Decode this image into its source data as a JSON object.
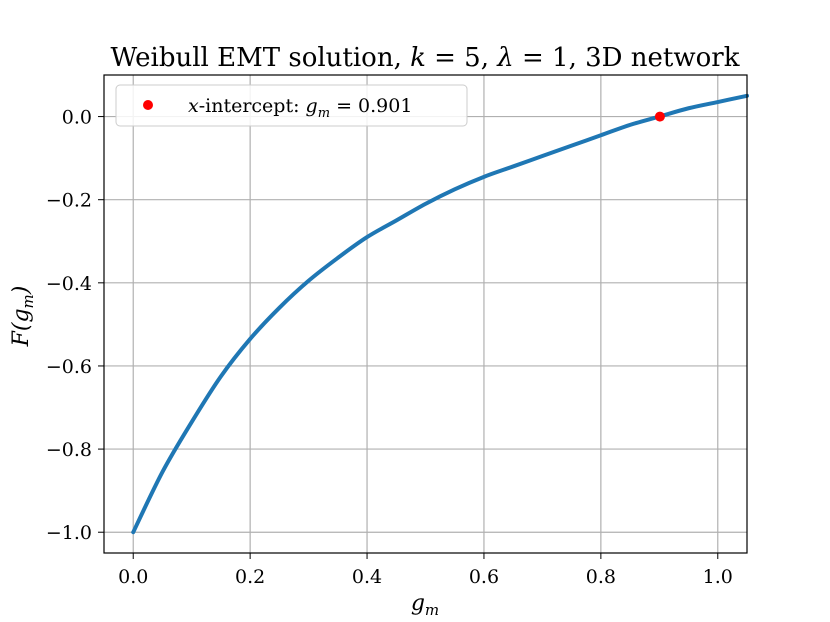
{
  "chart_data": {
    "type": "line",
    "title": "Weibull EMT solution, k = 5, λ = 1, 3D network",
    "xlabel": "g_m",
    "ylabel": "F(g_m)",
    "xlim": [
      -0.05,
      1.05
    ],
    "ylim": [
      -1.05,
      0.1
    ],
    "grid": true,
    "legend_position": "top-left",
    "x_ticks": [
      0.0,
      0.2,
      0.4,
      0.6,
      0.8,
      1.0
    ],
    "x_tick_labels": [
      "0.0",
      "0.2",
      "0.4",
      "0.6",
      "0.8",
      "1.0"
    ],
    "y_ticks": [
      0.0,
      -0.2,
      -0.4,
      -0.6,
      -0.8,
      -1.0
    ],
    "y_tick_labels": [
      "0.0",
      "−0.2",
      "−0.4",
      "−0.6",
      "−0.8",
      "−1.0"
    ],
    "series": [
      {
        "type": "line",
        "color": "#1f77b4",
        "x": [
          0.0,
          0.05,
          0.1,
          0.15,
          0.2,
          0.25,
          0.3,
          0.35,
          0.4,
          0.45,
          0.5,
          0.55,
          0.6,
          0.65,
          0.7,
          0.75,
          0.8,
          0.85,
          0.9,
          0.95,
          1.0,
          1.05
        ],
        "y": [
          -1.0,
          -0.855,
          -0.735,
          -0.625,
          -0.535,
          -0.46,
          -0.395,
          -0.34,
          -0.29,
          -0.25,
          -0.21,
          -0.175,
          -0.145,
          -0.12,
          -0.095,
          -0.07,
          -0.045,
          -0.02,
          0.0,
          0.02,
          0.035,
          0.05
        ]
      },
      {
        "type": "point",
        "name": "x-intercept: g_m = 0.901",
        "color": "#ff0000",
        "x": [
          0.901
        ],
        "y": [
          0.0
        ]
      }
    ]
  }
}
